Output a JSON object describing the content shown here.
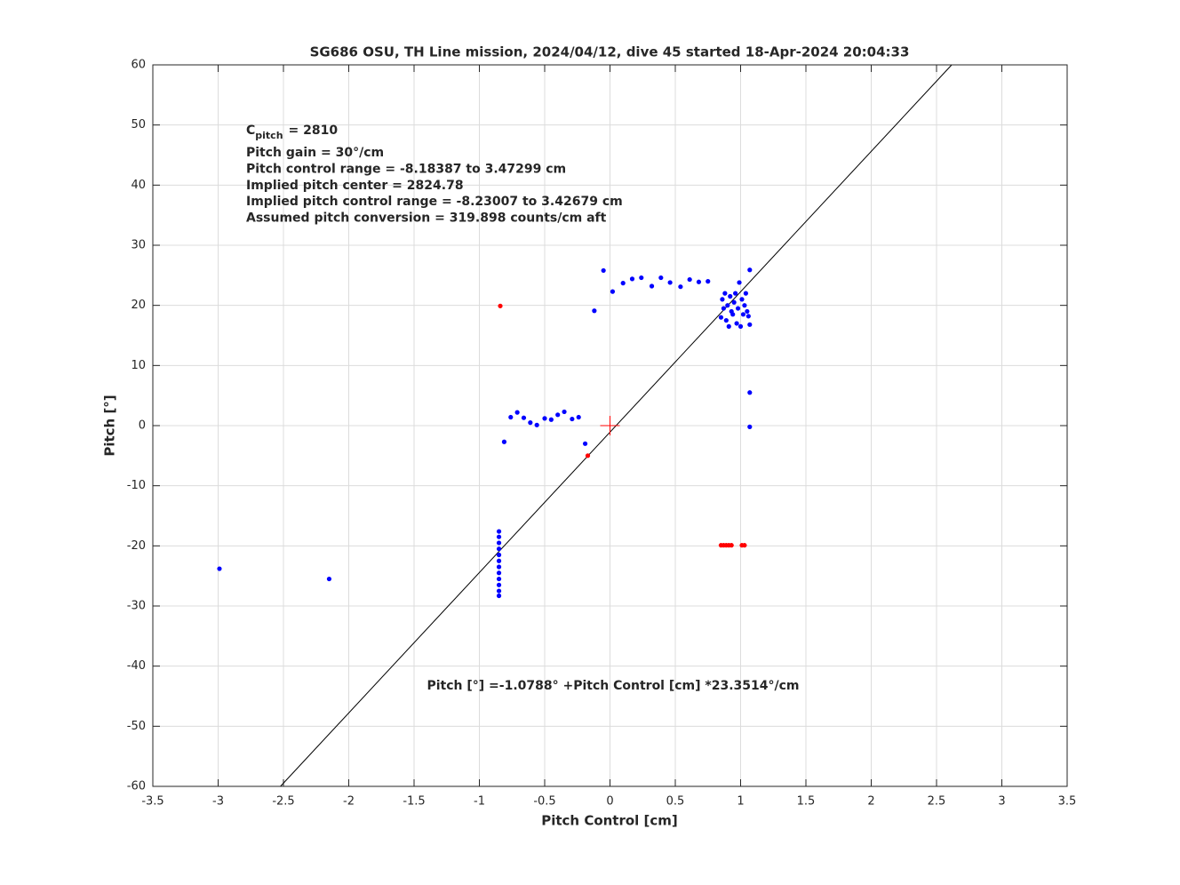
{
  "chart_data": {
    "type": "scatter",
    "title": "SG686 OSU, TH Line mission, 2024/04/12, dive 45 started 18-Apr-2024 20:04:33",
    "xlabel": "Pitch Control [cm]",
    "ylabel": "Pitch [°]",
    "xlim": [
      -3.5,
      3.5
    ],
    "ylim": [
      -60,
      60
    ],
    "xticks": [
      -3.5,
      -3,
      -2.5,
      -2,
      -1.5,
      -1,
      -0.5,
      0,
      0.5,
      1,
      1.5,
      2,
      2.5,
      3,
      3.5
    ],
    "yticks": [
      -60,
      -50,
      -40,
      -30,
      -20,
      -10,
      0,
      10,
      20,
      30,
      40,
      50,
      60
    ],
    "grid": true,
    "cpitch": {
      "symbol": "C",
      "subscript": "pitch",
      "text": "= 2810"
    },
    "annotations": [
      "Pitch gain = 30°/cm",
      "Pitch control range = -8.18387 to 3.47299 cm",
      "Implied pitch center = 2824.78",
      "Implied pitch control range = -8.23007 to 3.42679 cm",
      "Assumed pitch conversion = 319.898 counts/cm aft"
    ],
    "fit_label": "Pitch [°] =-1.0788° +Pitch Control [cm] *23.3514°/cm",
    "series": [
      {
        "mode": "line",
        "color": "#000000",
        "x": [
          -2.523,
          2.616
        ],
        "values": [
          -60,
          60
        ]
      },
      {
        "mode": "points",
        "color": "#0000ff",
        "x": [
          -2.99,
          -2.15,
          -0.85,
          -0.85,
          -0.85,
          -0.85,
          -0.85,
          -0.85,
          -0.85,
          -0.85,
          -0.85,
          -0.85,
          -0.85,
          -0.85,
          -0.81,
          -0.76,
          -0.71,
          -0.66,
          -0.61,
          -0.56,
          -0.5,
          -0.45,
          -0.4,
          -0.35,
          -0.29,
          -0.24,
          -0.19,
          -0.12,
          -0.05,
          0.02,
          0.1,
          0.17,
          0.24,
          0.32,
          0.39,
          0.46,
          0.54,
          0.61,
          0.68,
          0.75,
          0.85,
          0.86,
          0.87,
          0.88,
          0.89,
          0.9,
          0.91,
          0.92,
          0.93,
          0.94,
          0.95,
          0.96,
          0.97,
          0.98,
          0.99,
          1.0,
          1.01,
          1.02,
          1.03,
          1.04,
          1.05,
          1.06,
          1.07,
          1.07,
          1.07,
          1.07
        ],
        "values": [
          -23.8,
          -25.5,
          -17.6,
          -18.5,
          -19.5,
          -20.5,
          -21.5,
          -22.5,
          -23.5,
          -24.5,
          -25.5,
          -26.5,
          -27.5,
          -28.3,
          -2.7,
          1.4,
          2.2,
          1.3,
          0.5,
          0.1,
          1.2,
          1.0,
          1.8,
          2.3,
          1.1,
          1.4,
          -3.0,
          19.1,
          25.8,
          22.3,
          23.7,
          24.4,
          24.6,
          23.2,
          24.6,
          23.8,
          23.1,
          24.3,
          23.9,
          24.0,
          18.0,
          21.0,
          19.5,
          22.0,
          17.5,
          20.0,
          16.5,
          21.5,
          19.0,
          18.5,
          20.5,
          22.0,
          17.0,
          19.5,
          23.8,
          16.5,
          21.0,
          18.5,
          20.0,
          22.0,
          19.0,
          18.2,
          16.8,
          25.9,
          5.5,
          -0.2
        ]
      },
      {
        "mode": "points",
        "color": "#ff0000",
        "x": [
          -0.84,
          -0.17,
          0.85,
          0.87,
          0.89,
          0.91,
          0.93,
          1.01,
          1.03
        ],
        "values": [
          19.9,
          -5.0,
          -19.9,
          -19.9,
          -19.9,
          -19.9,
          -19.9,
          -19.9,
          -19.9
        ]
      },
      {
        "mode": "plus",
        "color": "#ff0000",
        "x": [
          0
        ],
        "values": [
          0
        ]
      }
    ]
  }
}
